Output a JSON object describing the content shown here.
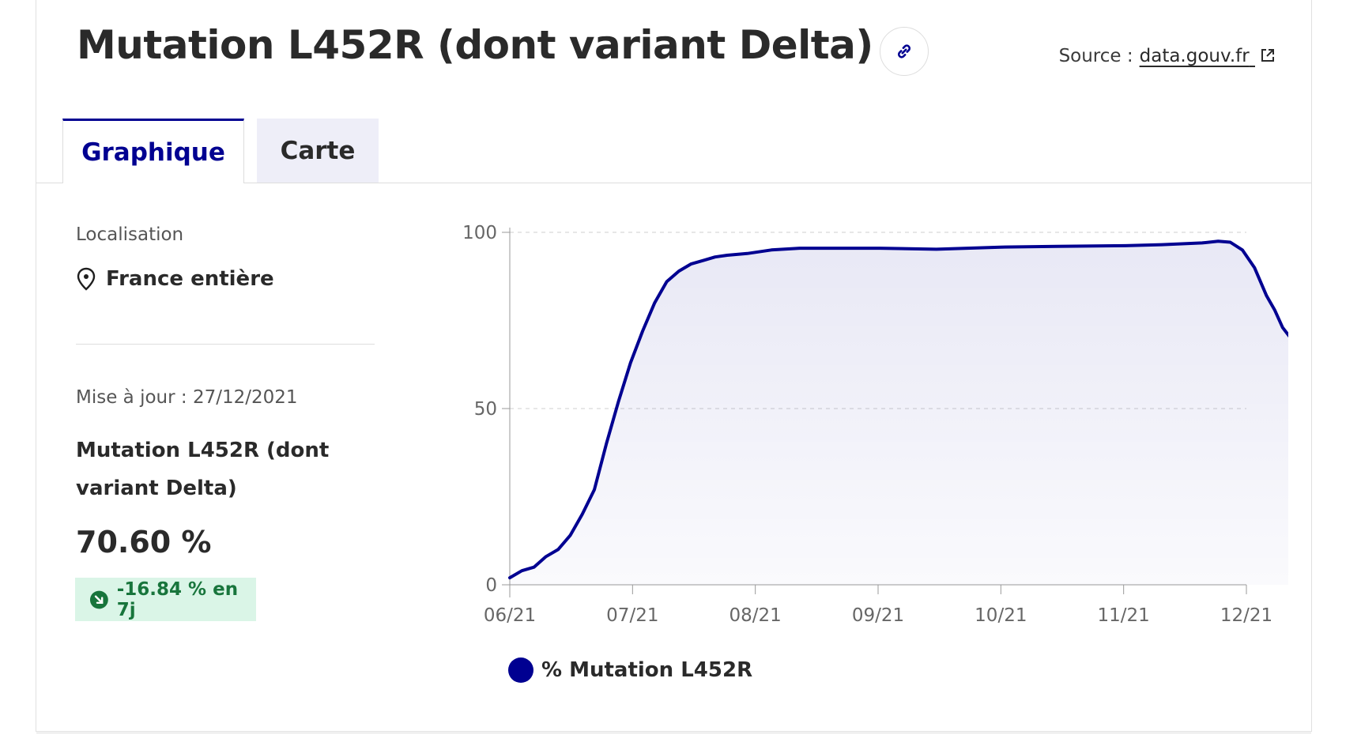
{
  "header": {
    "title": "Mutation L452R (dont variant Delta)",
    "source_label": "Source :",
    "source_link": "data.gouv.fr"
  },
  "tabs": [
    {
      "label": "Graphique",
      "active": true
    },
    {
      "label": "Carte",
      "active": false
    }
  ],
  "sidebar": {
    "location_label": "Localisation",
    "location_value": "France entière",
    "updated": "Mise à jour : 27/12/2021",
    "indicator_name": "Mutation L452R (dont variant Delta)",
    "indicator_value": "70.60 %",
    "trend_text": "-16.84 % en 7j",
    "trend_color": "#18753c"
  },
  "colors": {
    "accent": "#000091",
    "trend_bg": "#daf5e7"
  },
  "chart_data": {
    "type": "area",
    "ylim": [
      0,
      100
    ],
    "y_ticks": [
      0,
      50,
      100
    ],
    "x_ticks": [
      "06/21",
      "07/21",
      "08/21",
      "09/21",
      "10/21",
      "11/21",
      "12/21"
    ],
    "grid": true,
    "legend_position": "bottom",
    "series": [
      {
        "name": "% Mutation L452R",
        "color": "#000091",
        "x": [
          "2021-06-01",
          "2021-06-04",
          "2021-06-07",
          "2021-06-10",
          "2021-06-13",
          "2021-06-16",
          "2021-06-19",
          "2021-06-22",
          "2021-06-25",
          "2021-06-28",
          "2021-07-01",
          "2021-07-04",
          "2021-07-07",
          "2021-07-10",
          "2021-07-13",
          "2021-07-16",
          "2021-07-19",
          "2021-07-22",
          "2021-07-25",
          "2021-07-30",
          "2021-08-05",
          "2021-08-12",
          "2021-08-20",
          "2021-09-01",
          "2021-09-15",
          "2021-10-01",
          "2021-10-15",
          "2021-11-01",
          "2021-11-10",
          "2021-11-20",
          "2021-11-24",
          "2021-11-27",
          "2021-11-30",
          "2021-12-03",
          "2021-12-06",
          "2021-12-08",
          "2021-12-10",
          "2021-12-12",
          "2021-12-14"
        ],
        "values": [
          2,
          4,
          5,
          8,
          10,
          14,
          20,
          27,
          40,
          52,
          63,
          72,
          80,
          86,
          89,
          91,
          92,
          93,
          93.5,
          94,
          95,
          95.5,
          95.5,
          95.5,
          95.2,
          95.8,
          96,
          96.2,
          96.5,
          97,
          97.5,
          97.2,
          95,
          90,
          82,
          78,
          73,
          70,
          70.6
        ]
      }
    ]
  }
}
